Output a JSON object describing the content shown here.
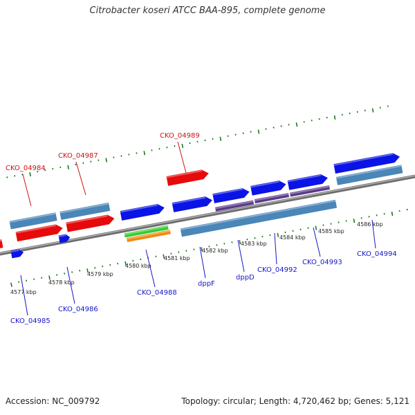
{
  "title": "Citrobacter koseri ATCC BAA-895, complete genome",
  "accession": "Accession: NC_009792",
  "stats": "Topology: circular; Length: 4,720,462 bp; Genes: 5,121",
  "colors": {
    "cds_forward": "#0a14e6",
    "cds_reverse": "#e60a0a",
    "gene_feature": "#4a86b8",
    "misc_feature": "#5a3a8a",
    "rna_green": "#33cc33",
    "rna_orange": "#ee8a11",
    "backbone": "#888888",
    "ticks": "#1a7a1a",
    "label_forward": "#1515c8",
    "label_reverse": "#cc1111"
  },
  "kbp_labels": [
    "4577 kbp",
    "4578 kbp",
    "4579 kbp",
    "4580 kbp",
    "4581 kbp",
    "4582 kbp",
    "4583 kbp",
    "4584 kbp",
    "4585 kbp",
    "4586 kbp"
  ],
  "gene_labels": [
    {
      "text": "CKO_04984",
      "strand": "reverse"
    },
    {
      "text": "CKO_04987",
      "strand": "reverse"
    },
    {
      "text": "CKO_04989",
      "strand": "reverse"
    },
    {
      "text": "CKO_04985",
      "strand": "forward"
    },
    {
      "text": "CKO_04986",
      "strand": "forward"
    },
    {
      "text": "CKO_04988",
      "strand": "forward"
    },
    {
      "text": "dppF",
      "strand": "forward"
    },
    {
      "text": "dppD",
      "strand": "forward"
    },
    {
      "text": "CKO_04992",
      "strand": "forward"
    },
    {
      "text": "CKO_04993",
      "strand": "forward"
    },
    {
      "text": "CKO_04994",
      "strand": "forward"
    }
  ]
}
